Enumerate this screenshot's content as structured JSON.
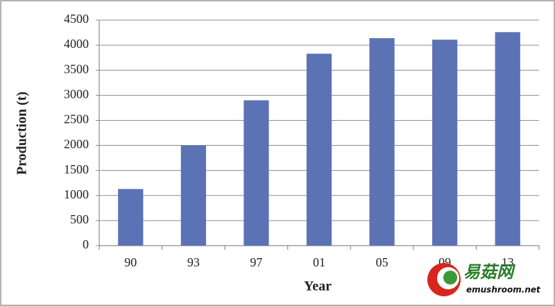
{
  "chart_data": {
    "type": "bar",
    "x_label": "Year",
    "y_label": "Production (t)",
    "categories": [
      "90",
      "93",
      "97",
      "01",
      "05",
      "09",
      "13"
    ],
    "values": [
      1130,
      2000,
      2900,
      3830,
      4140,
      4110,
      4260
    ],
    "color": "#5b73b5",
    "ylim": [
      0,
      4500
    ],
    "yticks": [
      0,
      500,
      1000,
      1500,
      2000,
      2500,
      3000,
      3500,
      4000,
      4500
    ],
    "grid": true
  },
  "watermark": {
    "name": "易菇网",
    "url": "emushroom.net"
  }
}
